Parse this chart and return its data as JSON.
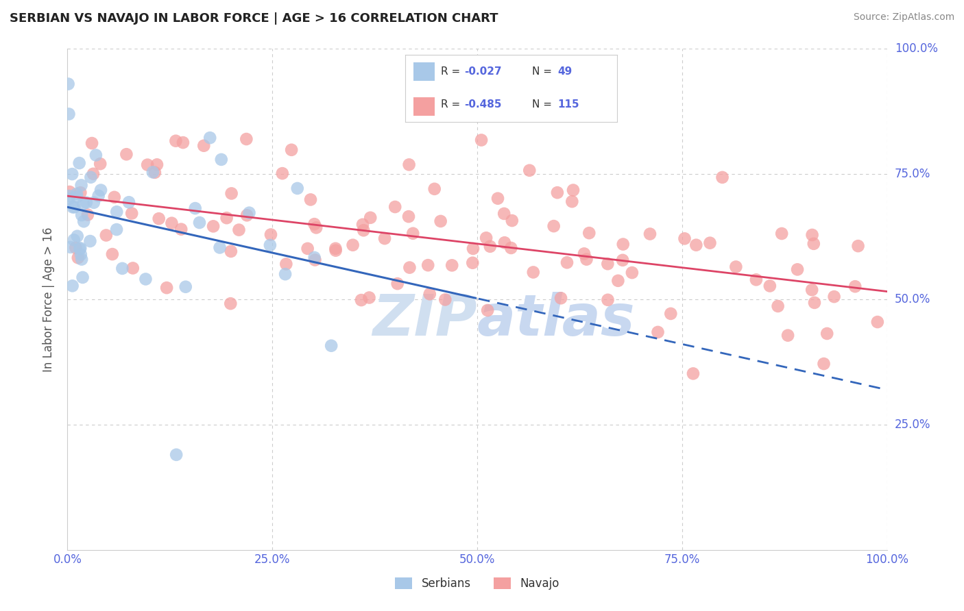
{
  "title": "SERBIAN VS NAVAJO IN LABOR FORCE | AGE > 16 CORRELATION CHART",
  "source": "Source: ZipAtlas.com",
  "ylabel": "In Labor Force | Age > 16",
  "xlim": [
    0,
    1
  ],
  "ylim": [
    0,
    1
  ],
  "serbian_color": "#a8c8e8",
  "navajo_color": "#f4a0a0",
  "serbian_line_color": "#3366bb",
  "navajo_line_color": "#dd4466",
  "tick_color": "#5566dd",
  "background_color": "#ffffff",
  "grid_color": "#cccccc",
  "serbian_R": -0.027,
  "serbian_N": 49,
  "navajo_R": -0.485,
  "navajo_N": 115,
  "legend_R_color": "#cc2244",
  "legend_text_color": "#333333",
  "watermark_color": "#d0dff0"
}
